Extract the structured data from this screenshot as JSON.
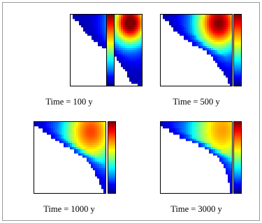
{
  "chart_data": [
    {
      "type": "heatmap",
      "title": "",
      "caption": "Time = 100 y",
      "xlabel": "",
      "ylabel": "",
      "colormap": "jet",
      "front_x": [
        4,
        7,
        12,
        16,
        19,
        22,
        26,
        30,
        35,
        40,
        45,
        50,
        56,
        62,
        66,
        70,
        73,
        75,
        78,
        80,
        82,
        85,
        88,
        95
      ],
      "colors": {
        "background": "#ffffff"
      }
    },
    {
      "type": "heatmap",
      "title": "",
      "caption": "Time = 500 y",
      "xlabel": "",
      "ylabel": "",
      "colormap": "jet",
      "front_x": [
        3,
        6,
        12,
        16,
        20,
        24,
        29,
        35,
        40,
        47,
        53,
        60,
        66,
        72,
        76,
        79,
        82,
        85,
        88,
        91,
        93,
        95,
        97,
        99
      ],
      "colors": {
        "background": "#ffffff"
      }
    },
    {
      "type": "heatmap",
      "title": "",
      "caption": "Time = 1000 y",
      "xlabel": "",
      "ylabel": "",
      "colormap": "jet",
      "front_x": [
        2,
        6,
        12,
        18,
        24,
        30,
        36,
        43,
        50,
        57,
        63,
        69,
        74,
        78,
        81,
        84,
        86,
        88,
        90,
        92,
        94,
        96,
        98,
        99
      ],
      "colors": {
        "background": "#ffffff"
      }
    },
    {
      "type": "heatmap",
      "title": "",
      "caption": "Time = 3000 y",
      "xlabel": "",
      "ylabel": "",
      "colormap": "jet",
      "front_x": [
        1,
        5,
        12,
        20,
        28,
        37,
        46,
        55,
        63,
        70,
        76,
        81,
        85,
        88,
        90,
        92,
        94,
        95,
        96,
        97,
        98,
        98,
        99,
        99
      ],
      "colors": {
        "background": "#ffffff"
      }
    }
  ]
}
